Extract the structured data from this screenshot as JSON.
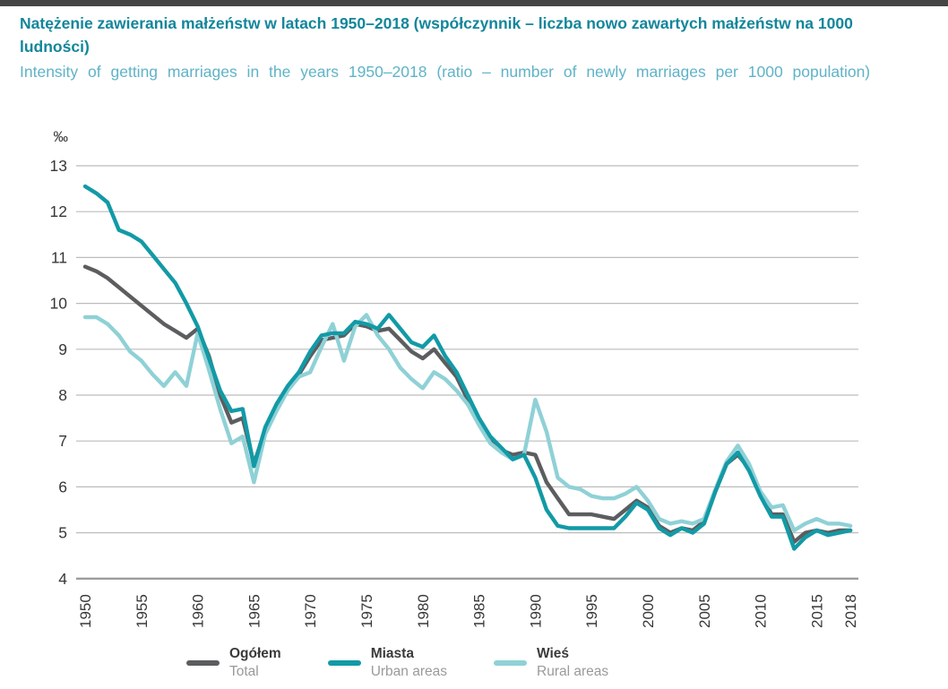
{
  "chart_data": {
    "type": "line",
    "title_pl": "Natężenie zawierania małżeństw w latach 1950–2018 (współczynnik – liczba nowo zawartych małżeństw na 1000 ludności)",
    "title_en": "Intensity of getting marriages in the years 1950–2018 (ratio – number of newly marriages per 1000 population)",
    "unit_label": "‰",
    "ylim": [
      4,
      13
    ],
    "y_ticks": [
      13,
      12,
      11,
      10,
      9,
      8,
      7,
      6,
      5,
      4
    ],
    "x_tick_labels": [
      "1950",
      "1955",
      "1960",
      "1965",
      "1970",
      "1975",
      "1980",
      "1985",
      "1990",
      "1995",
      "2000",
      "2005",
      "2010",
      "2015",
      "2018"
    ],
    "grid": true,
    "legend_position": "bottom",
    "x": [
      1950,
      1951,
      1952,
      1953,
      1954,
      1955,
      1956,
      1957,
      1958,
      1959,
      1960,
      1961,
      1962,
      1963,
      1964,
      1965,
      1966,
      1967,
      1968,
      1969,
      1970,
      1971,
      1972,
      1973,
      1974,
      1975,
      1976,
      1977,
      1978,
      1979,
      1980,
      1981,
      1982,
      1983,
      1984,
      1985,
      1986,
      1987,
      1988,
      1989,
      1990,
      1991,
      1992,
      1993,
      1994,
      1995,
      1996,
      1997,
      1998,
      1999,
      2000,
      2001,
      2002,
      2003,
      2004,
      2005,
      2006,
      2007,
      2008,
      2009,
      2010,
      2011,
      2012,
      2013,
      2014,
      2015,
      2016,
      2017,
      2018
    ],
    "series": [
      {
        "label_pl": "Ogółem",
        "label_en": "Total",
        "color": "#5c5d5f",
        "values": [
          10.8,
          10.7,
          10.55,
          10.35,
          10.15,
          9.95,
          9.75,
          9.55,
          9.4,
          9.25,
          9.45,
          8.85,
          8.0,
          7.4,
          7.5,
          6.5,
          7.25,
          7.7,
          8.15,
          8.45,
          8.85,
          9.2,
          9.25,
          9.3,
          9.55,
          9.5,
          9.4,
          9.45,
          9.2,
          8.95,
          8.8,
          9.0,
          8.7,
          8.4,
          7.9,
          7.4,
          7.0,
          6.8,
          6.7,
          6.75,
          6.7,
          6.1,
          5.75,
          5.4,
          5.4,
          5.4,
          5.35,
          5.3,
          5.5,
          5.7,
          5.55,
          5.15,
          5.0,
          5.1,
          5.05,
          5.25,
          5.9,
          6.5,
          6.7,
          6.4,
          5.85,
          5.4,
          5.4,
          4.8,
          5.0,
          5.05,
          5.0,
          5.05,
          5.05
        ]
      },
      {
        "label_pl": "Miasta",
        "label_en": "Urban areas",
        "color": "#129aa6",
        "values": [
          12.55,
          12.4,
          12.2,
          11.6,
          11.5,
          11.35,
          11.05,
          10.75,
          10.45,
          10.0,
          9.5,
          8.8,
          8.1,
          7.65,
          7.7,
          6.45,
          7.3,
          7.8,
          8.2,
          8.5,
          8.95,
          9.3,
          9.35,
          9.35,
          9.6,
          9.55,
          9.45,
          9.75,
          9.45,
          9.15,
          9.05,
          9.3,
          8.85,
          8.5,
          8.0,
          7.5,
          7.1,
          6.85,
          6.6,
          6.7,
          6.2,
          5.5,
          5.15,
          5.1,
          5.1,
          5.1,
          5.1,
          5.1,
          5.35,
          5.65,
          5.5,
          5.1,
          4.95,
          5.1,
          5.0,
          5.2,
          5.9,
          6.5,
          6.75,
          6.35,
          5.8,
          5.35,
          5.35,
          4.65,
          4.9,
          5.05,
          4.95,
          5.0,
          5.05
        ]
      },
      {
        "label_pl": "Wieś",
        "label_en": "Rural areas",
        "color": "#8fd1d6",
        "values": [
          9.7,
          9.7,
          9.55,
          9.3,
          8.95,
          8.75,
          8.45,
          8.2,
          8.5,
          8.2,
          9.35,
          8.55,
          7.7,
          6.95,
          7.1,
          6.1,
          7.15,
          7.65,
          8.1,
          8.4,
          8.5,
          9.05,
          9.55,
          8.75,
          9.5,
          9.75,
          9.3,
          9.0,
          8.6,
          8.35,
          8.15,
          8.5,
          8.35,
          8.1,
          7.8,
          7.35,
          6.95,
          6.75,
          6.6,
          6.7,
          7.9,
          7.2,
          6.2,
          6.0,
          5.95,
          5.8,
          5.75,
          5.75,
          5.85,
          6.0,
          5.7,
          5.3,
          5.2,
          5.25,
          5.2,
          5.3,
          5.95,
          6.55,
          6.9,
          6.5,
          5.9,
          5.55,
          5.6,
          5.05,
          5.2,
          5.3,
          5.2,
          5.2,
          5.15
        ]
      }
    ],
    "colors": {
      "title": "#13869b",
      "subtitle": "#5fb3c7",
      "axis_text": "#373737",
      "gridline": "#bcbcbc",
      "axis_line": "#9c9c9c",
      "top_strip": "#454545"
    }
  }
}
